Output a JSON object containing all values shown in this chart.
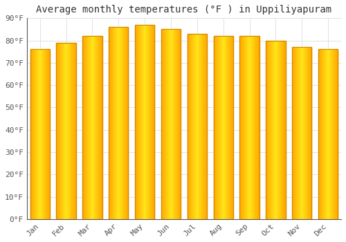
{
  "months": [
    "Jan",
    "Feb",
    "Mar",
    "Apr",
    "May",
    "Jun",
    "Jul",
    "Aug",
    "Sep",
    "Oct",
    "Nov",
    "Dec"
  ],
  "values": [
    76,
    79,
    82,
    86,
    87,
    85,
    83,
    82,
    82,
    80,
    77,
    76
  ],
  "bar_color_face": "#FFBB33",
  "bar_color_edge": "#CC8800",
  "title": "Average monthly temperatures (°F ) in Uppiliyapuram",
  "ylim": [
    0,
    90
  ],
  "yticks": [
    0,
    10,
    20,
    30,
    40,
    50,
    60,
    70,
    80,
    90
  ],
  "ytick_labels": [
    "0°F",
    "10°F",
    "20°F",
    "30°F",
    "40°F",
    "50°F",
    "60°F",
    "70°F",
    "80°F",
    "90°F"
  ],
  "background_color": "#FFFFFF",
  "plot_bg_color": "#FFFFFF",
  "grid_color": "#DDDDDD",
  "title_fontsize": 10,
  "tick_fontsize": 8,
  "bar_width": 0.75,
  "tick_color": "#555555"
}
